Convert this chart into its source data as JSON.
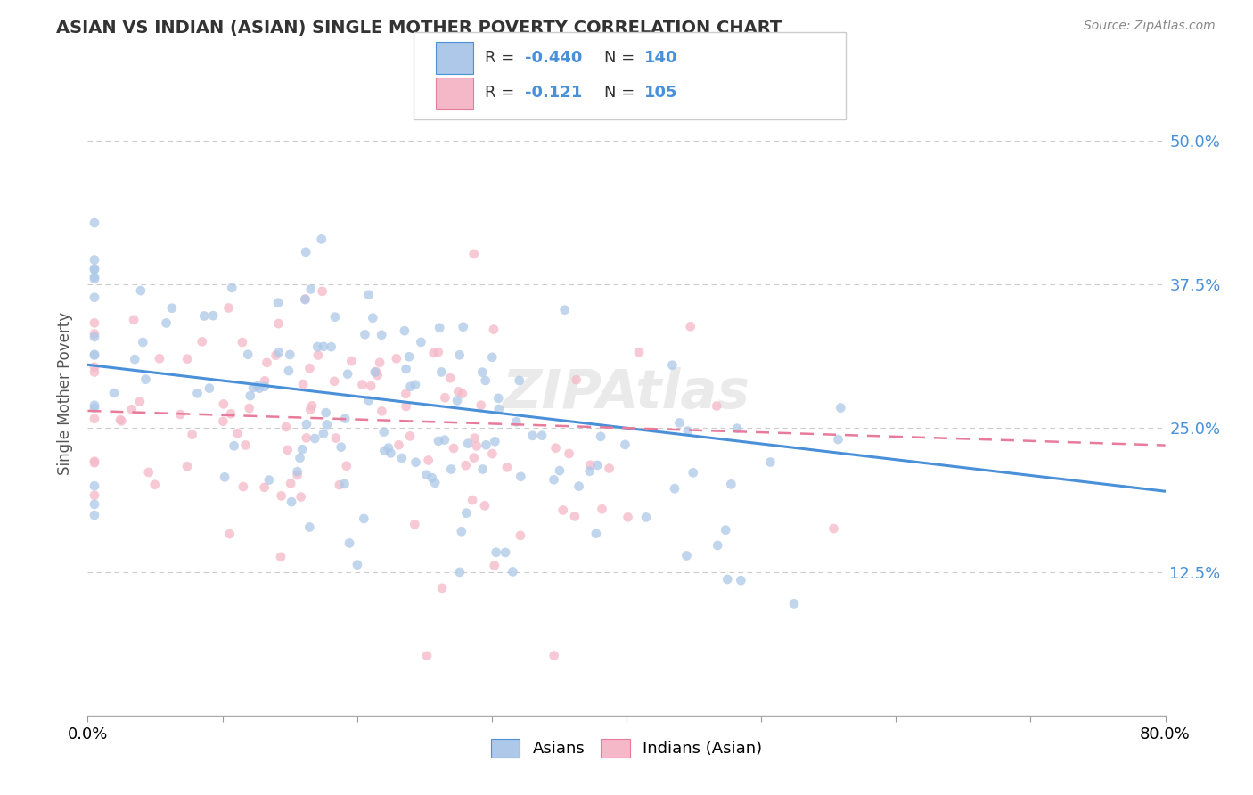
{
  "title": "ASIAN VS INDIAN (ASIAN) SINGLE MOTHER POVERTY CORRELATION CHART",
  "source": "Source: ZipAtlas.com",
  "ylabel": "Single Mother Poverty",
  "yticks": [
    "12.5%",
    "25.0%",
    "37.5%",
    "50.0%"
  ],
  "ytick_vals": [
    0.125,
    0.25,
    0.375,
    0.5
  ],
  "xlim": [
    0.0,
    0.8
  ],
  "ylim": [
    0.0,
    0.56
  ],
  "color_asian": "#adc8e8",
  "color_indian": "#f5b8c8",
  "color_asian_line": "#4a90d9",
  "color_indian_line": "#e87a9a",
  "dot_size": 60,
  "watermark": "ZIPAtlas",
  "grid_color": "#cccccc",
  "bg_color": "#ffffff",
  "R_asian": -0.44,
  "N_asian": 140,
  "R_indian": -0.121,
  "N_indian": 105,
  "asian_line_start": 0.305,
  "asian_line_end": 0.195,
  "indian_line_start": 0.265,
  "indian_line_end": 0.235
}
